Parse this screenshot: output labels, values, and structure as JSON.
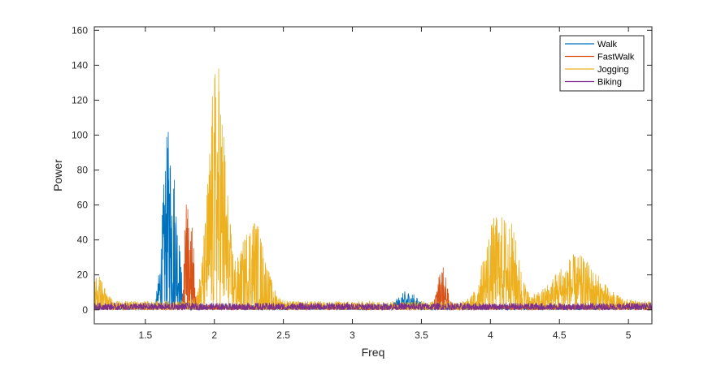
{
  "chart_data": {
    "type": "line",
    "title": "",
    "xlabel": "Freq",
    "ylabel": "Power",
    "xlim": [
      1.13,
      5.17
    ],
    "ylim": [
      -8,
      162
    ],
    "xticks": [
      1.5,
      2,
      2.5,
      3,
      3.5,
      4,
      4.5,
      5
    ],
    "xtick_labels": [
      "1.5",
      "2",
      "2.5",
      "3",
      "3.5",
      "4",
      "4.5",
      "5"
    ],
    "yticks": [
      0,
      20,
      40,
      60,
      80,
      100,
      120,
      140,
      160
    ],
    "ytick_labels": [
      "0",
      "20",
      "40",
      "60",
      "80",
      "100",
      "120",
      "140",
      "160"
    ],
    "grid": false,
    "legend_position": "top-right",
    "series": [
      {
        "name": "Walk",
        "color": "#0072BD",
        "noise_floor": 3,
        "peaks": [
          {
            "center": 1.66,
            "width": 0.035,
            "height": 93
          },
          {
            "center": 1.72,
            "width": 0.03,
            "height": 50
          },
          {
            "center": 3.4,
            "width": 0.06,
            "height": 8
          }
        ]
      },
      {
        "name": "FastWalk",
        "color": "#D95319",
        "noise_floor": 3,
        "peaks": [
          {
            "center": 1.8,
            "width": 0.015,
            "height": 66
          },
          {
            "center": 1.84,
            "width": 0.012,
            "height": 51
          },
          {
            "center": 3.65,
            "width": 0.03,
            "height": 23
          }
        ]
      },
      {
        "name": "Jogging",
        "color": "#EDB120",
        "noise_floor": 5,
        "peaks": [
          {
            "center": 1.15,
            "width": 0.05,
            "height": 16
          },
          {
            "center": 2.02,
            "width": 0.06,
            "height": 140
          },
          {
            "center": 2.28,
            "width": 0.08,
            "height": 50
          },
          {
            "center": 4.02,
            "width": 0.07,
            "height": 44
          },
          {
            "center": 4.15,
            "width": 0.06,
            "height": 38
          },
          {
            "center": 4.62,
            "width": 0.15,
            "height": 27
          }
        ]
      },
      {
        "name": "Biking",
        "color": "#7E2F8E",
        "noise_floor": 4,
        "peaks": []
      }
    ]
  }
}
